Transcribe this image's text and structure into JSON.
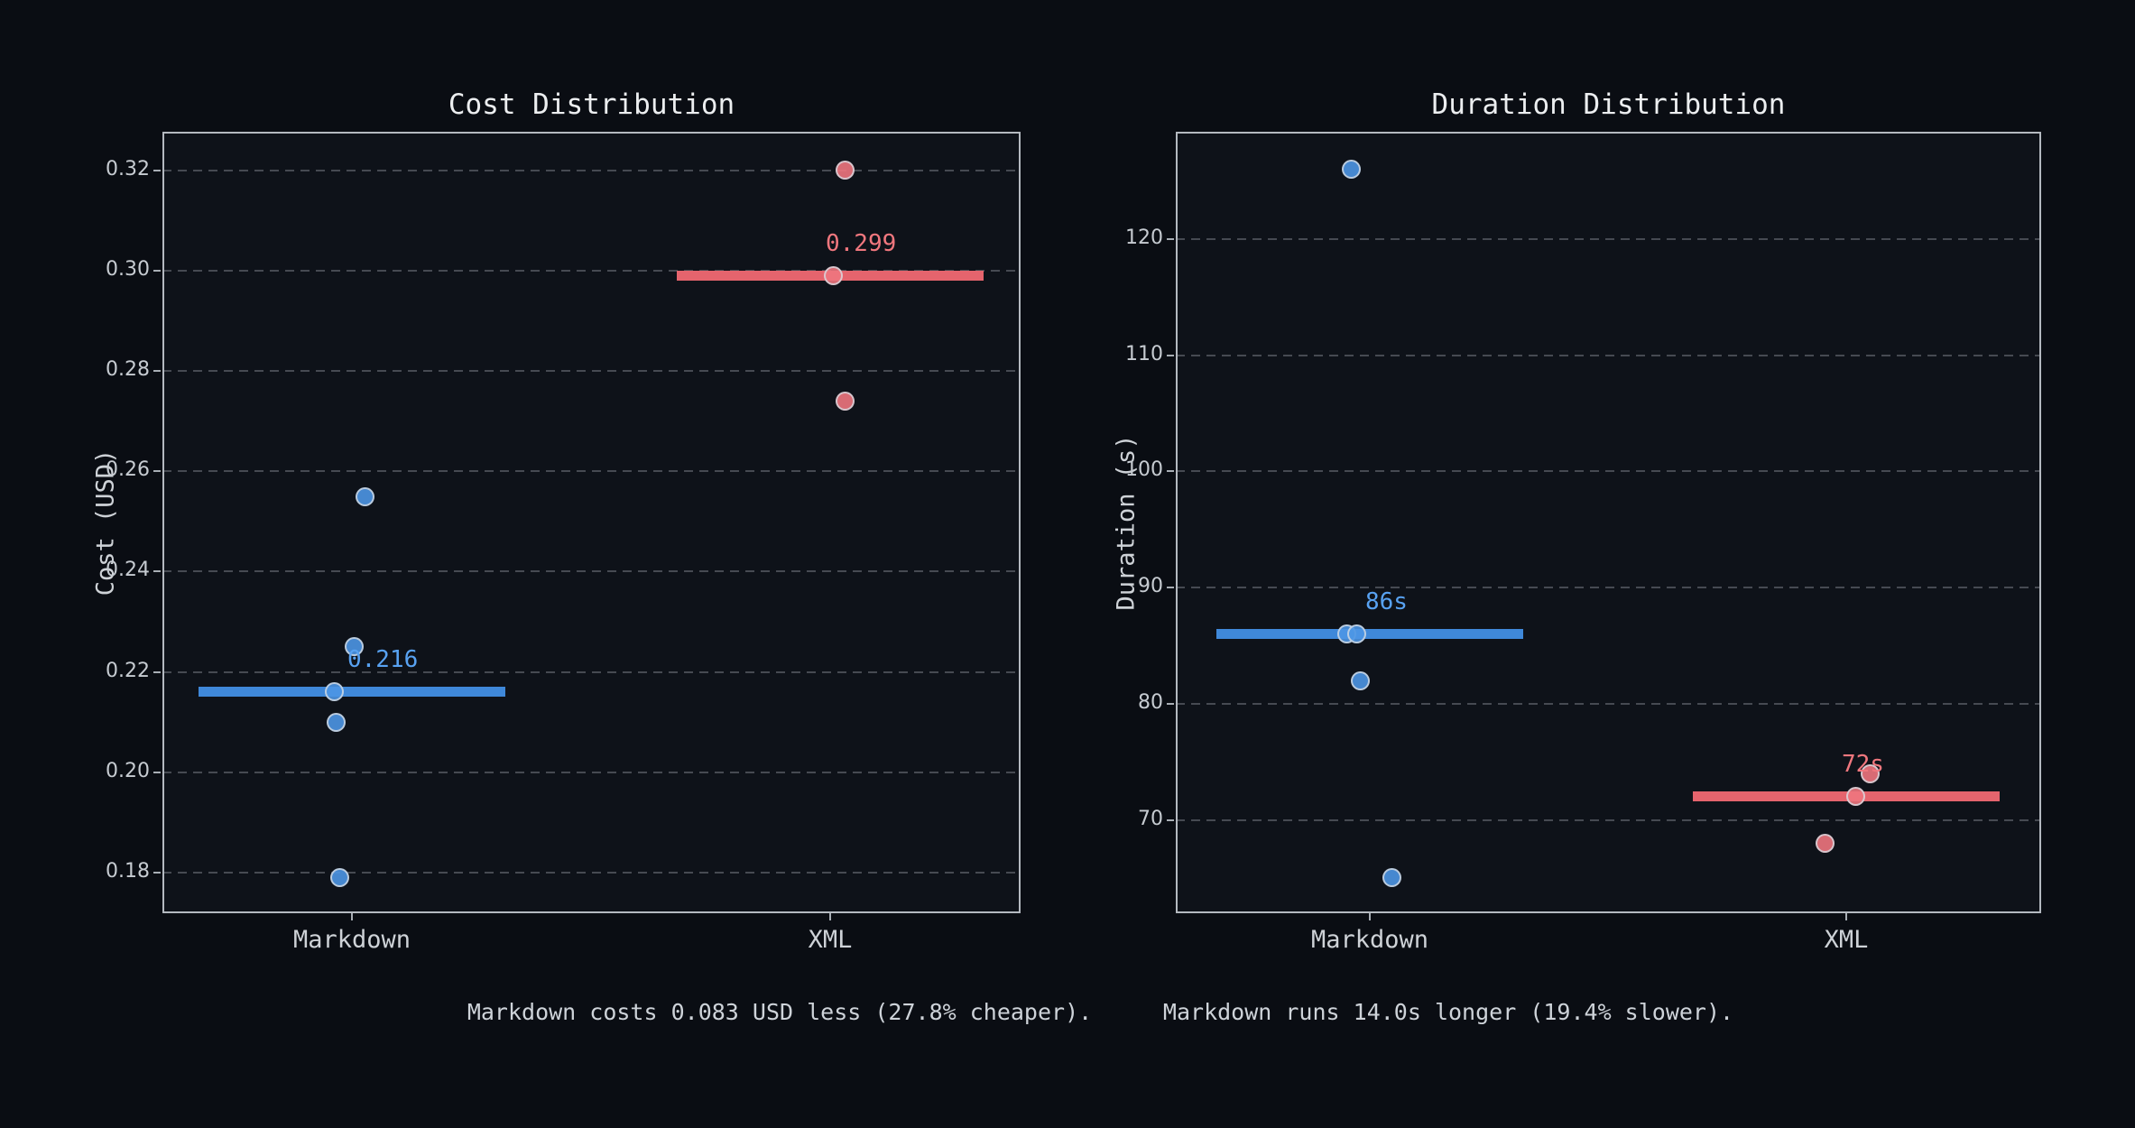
{
  "figure": {
    "bg_outer": "#0a0d13",
    "bg_axes": "#0e1219",
    "spine_color": "#b4b9c0",
    "grid_color": "rgba(160,166,176,0.38)",
    "tick_label_color": "#c6cbd1",
    "title_color": "#eceef0",
    "caption_color": "#ced3d9"
  },
  "colors": {
    "markdown": {
      "marker": "rgba(77,150,228,0.9)",
      "line": "#3f88d9",
      "label": "#58a2f2"
    },
    "xml": {
      "marker": "rgba(238,118,126,0.9)",
      "line": "#e5646d",
      "label": "#f0777e"
    }
  },
  "captions": [
    "Markdown costs 0.083 USD less (27.8% cheaper).",
    "Markdown runs 14.0s longer (19.4% slower)."
  ],
  "chart_data": [
    {
      "type": "scatter",
      "title": "Cost Distribution",
      "xlabel": "",
      "ylabel": "Cost (USD)",
      "categories": [
        "Markdown",
        "XML"
      ],
      "ylim": [
        0.1719,
        0.3277
      ],
      "grid": true,
      "yticks": {
        "values": [
          0.18,
          0.2,
          0.22,
          0.24,
          0.26,
          0.28,
          0.3,
          0.32
        ],
        "labels": [
          "0.18",
          "0.20",
          "0.22",
          "0.24",
          "0.26",
          "0.28",
          "0.30",
          "0.32"
        ]
      },
      "series": [
        {
          "name": "Markdown",
          "group": "markdown",
          "median": 0.216,
          "median_label": "0.216",
          "points": [
            {
              "v": 0.255,
              "dx": 14
            },
            {
              "v": 0.225,
              "dx": 2
            },
            {
              "v": 0.216,
              "dx": -20
            },
            {
              "v": 0.21,
              "dx": -18
            },
            {
              "v": 0.179,
              "dx": -14
            }
          ]
        },
        {
          "name": "XML",
          "group": "xml",
          "median": 0.299,
          "median_label": "0.299",
          "points": [
            {
              "v": 0.32,
              "dx": 16
            },
            {
              "v": 0.299,
              "dx": 3
            },
            {
              "v": 0.274,
              "dx": 16
            }
          ]
        }
      ]
    },
    {
      "type": "scatter",
      "title": "Duration Distribution",
      "xlabel": "",
      "ylabel": "Duration (s)",
      "categories": [
        "Markdown",
        "XML"
      ],
      "ylim": [
        61.97,
        129.23
      ],
      "grid": true,
      "yticks": {
        "values": [
          70,
          80,
          90,
          100,
          110,
          120
        ],
        "labels": [
          "70",
          "80",
          "90",
          "100",
          "110",
          "120"
        ]
      },
      "series": [
        {
          "name": "Markdown",
          "group": "markdown",
          "median": 86,
          "median_label": "86s",
          "points": [
            {
              "v": 126,
              "dx": -21
            },
            {
              "v": 86,
              "dx": -26
            },
            {
              "v": 86,
              "dx": -15
            },
            {
              "v": 82,
              "dx": -11
            },
            {
              "v": 65,
              "dx": 24
            }
          ]
        },
        {
          "name": "XML",
          "group": "xml",
          "median": 72,
          "median_label": "72s",
          "points": [
            {
              "v": 74,
              "dx": 26
            },
            {
              "v": 72,
              "dx": 10
            },
            {
              "v": 68,
              "dx": -24
            }
          ]
        }
      ]
    }
  ]
}
